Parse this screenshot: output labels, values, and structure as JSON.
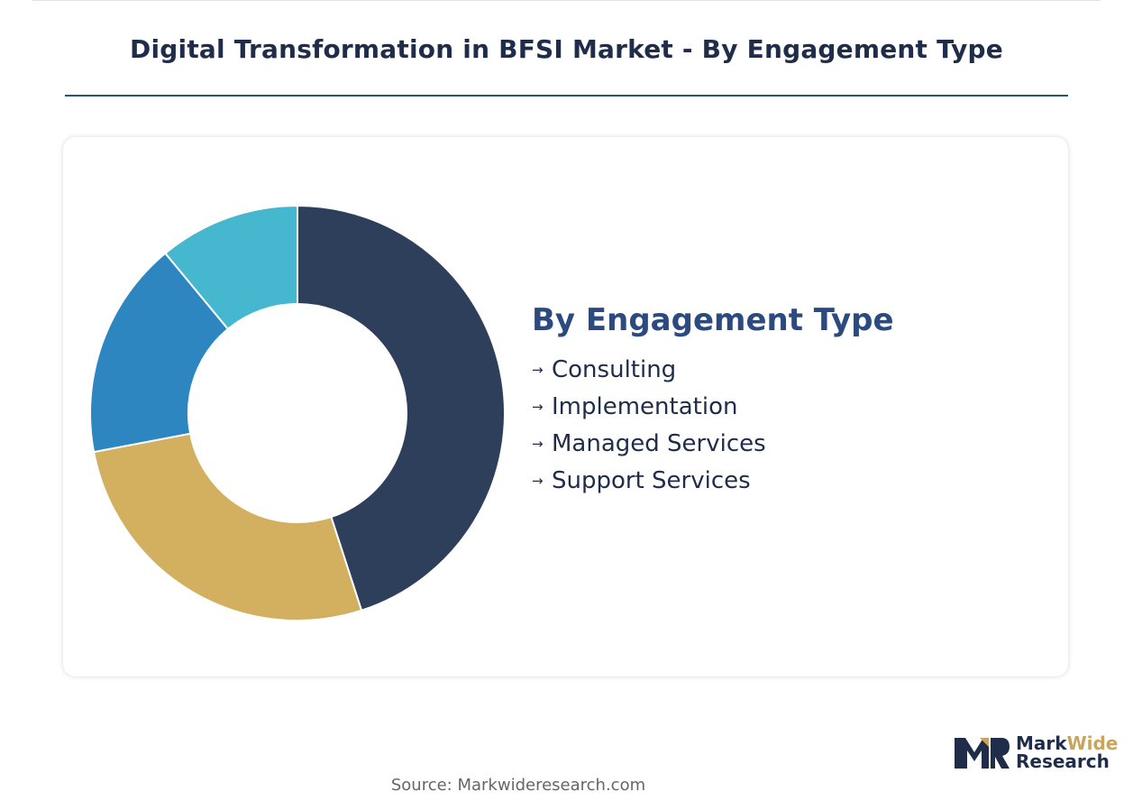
{
  "title": "Digital Transformation in BFSI Market - By Engagement Type",
  "chart_data": {
    "type": "pie",
    "title": "Digital Transformation in BFSI Market - By Engagement Type",
    "legend_title": "By Engagement Type",
    "legend_placement": "right",
    "categories": [
      "Consulting",
      "Implementation",
      "Managed Services",
      "Support Services"
    ],
    "values": [
      45,
      27,
      17,
      11
    ],
    "colors": [
      "#2e3f5c",
      "#d2b060",
      "#2e86c1",
      "#45b7ce"
    ]
  },
  "source": "Source: Markwideresearch.com",
  "logo": {
    "part1": "Mark",
    "part2": "Wide",
    "line2": "Research"
  }
}
